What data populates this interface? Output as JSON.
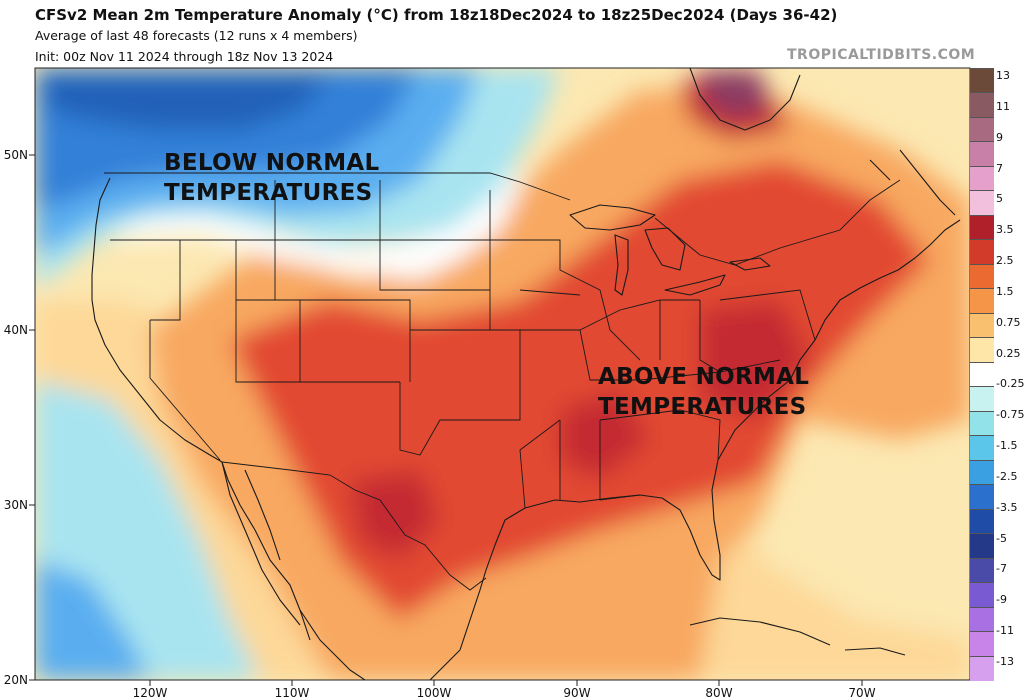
{
  "header": {
    "title": "CFSv2 Mean 2m Temperature Anomaly (°C) from 18z18Dec2024 to 18z25Dec2024 (Days 36-42)",
    "subtitle": "Average of last 48 forecasts (12 runs x 4 members)",
    "init": "Init: 00z Nov 11 2024 through 18z Nov 13 2024",
    "brand": "TROPICALTIDBITS.COM"
  },
  "map": {
    "lat_labels": [
      "50N",
      "40N",
      "30N",
      "20N"
    ],
    "lon_labels": [
      "120W",
      "110W",
      "100W",
      "90W",
      "80W",
      "70W"
    ],
    "annotations": {
      "below_line1": "BELOW NORMAL",
      "below_line2": "TEMPERATURES",
      "above_line1": "ABOVE NORMAL",
      "above_line2": "TEMPERATURES"
    }
  },
  "colorbar": {
    "labels": [
      "13",
      "11",
      "9",
      "7",
      "5",
      "3.5",
      "2.5",
      "1.5",
      "0.75",
      "0.25",
      "-0.25",
      "-0.75",
      "-1.5",
      "-2.5",
      "-3.5",
      "-5",
      "-7",
      "-9",
      "-11",
      "-13"
    ],
    "colors": [
      "#6b4a3a",
      "#8a5a62",
      "#a86a80",
      "#c880a8",
      "#e6a0cc",
      "#f2c0dc",
      "#b0202a",
      "#d23a2a",
      "#ea6a32",
      "#f59548",
      "#f9c070",
      "#fde6a8",
      "#ffffff",
      "#c8f2f0",
      "#92e2ea",
      "#5cc6ea",
      "#3aa0e2",
      "#2a70cc",
      "#1f4ca6",
      "#243a88",
      "#4a4aa8",
      "#7a5ad2",
      "#a870e2",
      "#c884e8",
      "#d6a0ee"
    ]
  },
  "colors": {
    "ocean": "#fce8b2",
    "deep_red": "#c42a30",
    "red": "#e24a30",
    "orange": "#f08040",
    "light_orange": "#f8a860",
    "pale": "#fdd898",
    "white": "#ffffff",
    "light_blue": "#a8e4f0",
    "blue": "#5aaef0",
    "dark_blue": "#3080d8",
    "navy": "#2060b8",
    "purple": "#8a3a62"
  }
}
